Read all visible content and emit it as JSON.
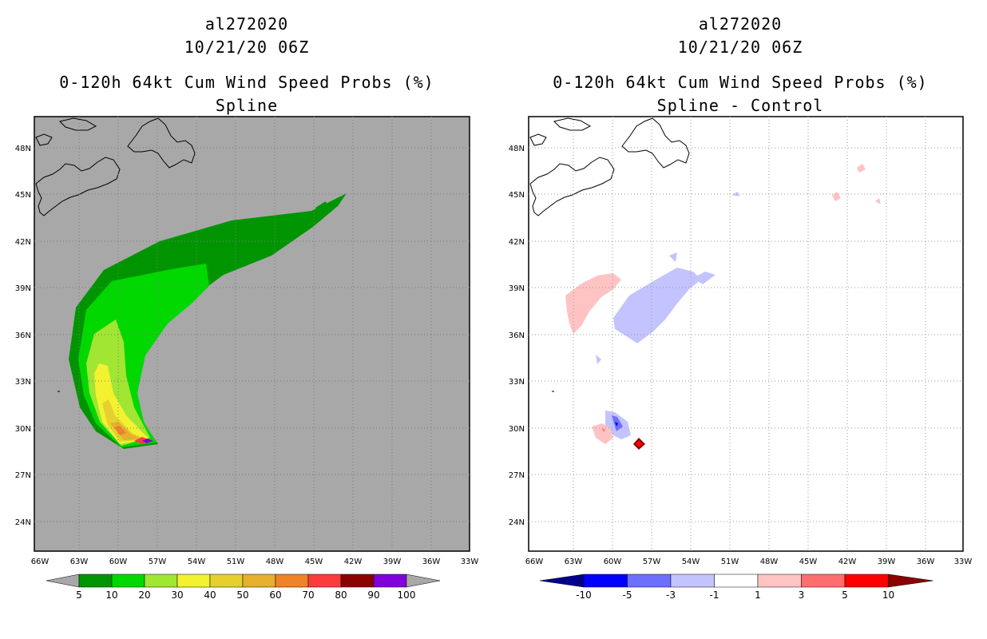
{
  "left": {
    "storm_id": "al272020",
    "datetime": "10/21/20 06Z",
    "product": "0-120h 64kt Cum Wind Speed Probs (%)",
    "subtitle": "Spline",
    "colorbar": {
      "labels": [
        "5",
        "10",
        "20",
        "30",
        "40",
        "50",
        "60",
        "70",
        "80",
        "90",
        "100"
      ],
      "colors": [
        "#009500",
        "#00d800",
        "#a0e632",
        "#f2f230",
        "#e6d030",
        "#e6af2d",
        "#f08228",
        "#fa3c3c",
        "#8c0000",
        "#8200dc"
      ]
    }
  },
  "right": {
    "storm_id": "al272020",
    "datetime": "10/21/20 06Z",
    "product": "0-120h 64kt Cum Wind Speed Probs (%)",
    "subtitle": "Spline - Control",
    "colorbar": {
      "labels": [
        "-10",
        "-5",
        "-3",
        "-1",
        "1",
        "3",
        "5",
        "10"
      ],
      "colors": [
        "#00008c",
        "#0000ff",
        "#6e6eff",
        "#c3c3ff",
        "#ffffff",
        "#ffc3c3",
        "#ff6e6e",
        "#ff0000",
        "#8c0000"
      ]
    }
  },
  "axes": {
    "lon_labels": [
      "66W",
      "63W",
      "60W",
      "57W",
      "54W",
      "51W",
      "48W",
      "45W",
      "42W",
      "39W",
      "36W",
      "33W"
    ],
    "lat_labels": [
      "48N",
      "45N",
      "42N",
      "39N",
      "36N",
      "33N",
      "30N",
      "27N",
      "24N"
    ]
  },
  "colors": {
    "map_bg_left": "#a8a8a8",
    "map_bg_right": "#ffffff",
    "grid": "#999999"
  }
}
